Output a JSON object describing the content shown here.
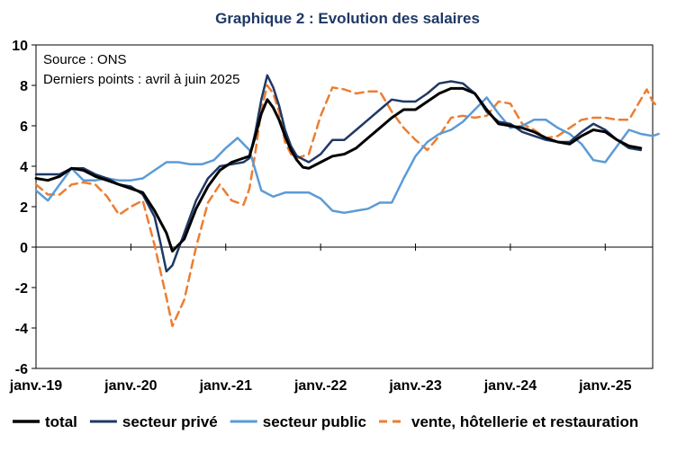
{
  "chart_data": {
    "type": "line",
    "title": "Graphique 2 : Evolution des salaires",
    "annotations": [
      "Source : ONS",
      "Derniers points : avril à juin 2025"
    ],
    "xlabel": "",
    "ylabel": "",
    "ylim": [
      -6,
      10
    ],
    "yticks": [
      -6,
      -4,
      -2,
      0,
      2,
      4,
      6,
      8,
      10
    ],
    "x_start": "2019-01",
    "x_end": "2025-06",
    "x_tick_labels": [
      "janv.-19",
      "janv.-20",
      "janv.-21",
      "janv.-22",
      "janv.-23",
      "janv.-24",
      "janv.-25"
    ],
    "grid": false,
    "legend_position": "bottom",
    "series": [
      {
        "name": "total",
        "color": "#000000",
        "style": "solid",
        "points": [
          [
            0,
            3.4
          ],
          [
            2,
            3.3
          ],
          [
            4,
            3.5
          ],
          [
            6,
            3.9
          ],
          [
            8,
            3.8
          ],
          [
            10,
            3.5
          ],
          [
            12,
            3.3
          ],
          [
            14,
            3.1
          ],
          [
            16,
            2.9
          ],
          [
            18,
            2.7
          ],
          [
            20,
            1.8
          ],
          [
            22,
            0.7
          ],
          [
            23,
            -0.2
          ],
          [
            25,
            0.4
          ],
          [
            27,
            1.9
          ],
          [
            29,
            3.0
          ],
          [
            31,
            3.8
          ],
          [
            33,
            4.2
          ],
          [
            35,
            4.4
          ],
          [
            36,
            4.5
          ],
          [
            37,
            5.5
          ],
          [
            38,
            6.6
          ],
          [
            39,
            7.3
          ],
          [
            40,
            6.9
          ],
          [
            41,
            6.3
          ],
          [
            42,
            5.5
          ],
          [
            43,
            4.8
          ],
          [
            44,
            4.3
          ],
          [
            45,
            3.95
          ],
          [
            46,
            3.9
          ],
          [
            48,
            4.2
          ],
          [
            50,
            4.5
          ],
          [
            52,
            4.6
          ],
          [
            54,
            4.9
          ],
          [
            56,
            5.4
          ],
          [
            58,
            5.9
          ],
          [
            60,
            6.4
          ],
          [
            62,
            6.8
          ],
          [
            64,
            6.8
          ],
          [
            66,
            7.2
          ],
          [
            68,
            7.6
          ],
          [
            70,
            7.85
          ],
          [
            72,
            7.85
          ],
          [
            74,
            7.6
          ],
          [
            76,
            6.8
          ],
          [
            78,
            6.1
          ],
          [
            80,
            6.0
          ],
          [
            82,
            5.9
          ],
          [
            84,
            5.7
          ],
          [
            86,
            5.4
          ],
          [
            88,
            5.2
          ],
          [
            90,
            5.1
          ],
          [
            92,
            5.5
          ],
          [
            94,
            5.8
          ],
          [
            96,
            5.7
          ],
          [
            98,
            5.3
          ],
          [
            100,
            5.0
          ],
          [
            102,
            4.9
          ]
        ]
      },
      {
        "name": "secteur privé",
        "color": "#1F3864",
        "style": "solid",
        "points": [
          [
            0,
            3.6
          ],
          [
            2,
            3.6
          ],
          [
            4,
            3.6
          ],
          [
            6,
            3.9
          ],
          [
            8,
            3.9
          ],
          [
            10,
            3.6
          ],
          [
            12,
            3.4
          ],
          [
            14,
            3.1
          ],
          [
            16,
            3.0
          ],
          [
            18,
            2.6
          ],
          [
            20,
            1.5
          ],
          [
            21,
            0.2
          ],
          [
            22,
            -1.2
          ],
          [
            23,
            -0.9
          ],
          [
            25,
            0.7
          ],
          [
            27,
            2.3
          ],
          [
            29,
            3.4
          ],
          [
            31,
            4.0
          ],
          [
            33,
            4.1
          ],
          [
            35,
            4.2
          ],
          [
            36,
            4.4
          ],
          [
            37,
            5.7
          ],
          [
            38,
            7.3
          ],
          [
            39,
            8.5
          ],
          [
            40,
            7.9
          ],
          [
            41,
            7.0
          ],
          [
            42,
            5.8
          ],
          [
            43,
            5.0
          ],
          [
            44,
            4.5
          ],
          [
            46,
            4.2
          ],
          [
            48,
            4.6
          ],
          [
            50,
            5.3
          ],
          [
            52,
            5.3
          ],
          [
            54,
            5.8
          ],
          [
            56,
            6.3
          ],
          [
            58,
            6.8
          ],
          [
            60,
            7.3
          ],
          [
            62,
            7.2
          ],
          [
            64,
            7.2
          ],
          [
            66,
            7.6
          ],
          [
            68,
            8.1
          ],
          [
            70,
            8.2
          ],
          [
            72,
            8.1
          ],
          [
            74,
            7.6
          ],
          [
            76,
            6.7
          ],
          [
            78,
            6.2
          ],
          [
            80,
            6.1
          ],
          [
            82,
            5.7
          ],
          [
            84,
            5.5
          ],
          [
            86,
            5.3
          ],
          [
            88,
            5.2
          ],
          [
            90,
            5.2
          ],
          [
            92,
            5.7
          ],
          [
            94,
            6.1
          ],
          [
            96,
            5.8
          ],
          [
            98,
            5.3
          ],
          [
            100,
            4.9
          ],
          [
            102,
            4.8
          ]
        ]
      },
      {
        "name": "secteur public",
        "color": "#5B9BD5",
        "style": "solid",
        "points": [
          [
            0,
            2.8
          ],
          [
            2,
            2.3
          ],
          [
            4,
            3.1
          ],
          [
            6,
            3.9
          ],
          [
            8,
            3.3
          ],
          [
            10,
            3.3
          ],
          [
            12,
            3.4
          ],
          [
            14,
            3.3
          ],
          [
            16,
            3.3
          ],
          [
            18,
            3.4
          ],
          [
            20,
            3.8
          ],
          [
            22,
            4.2
          ],
          [
            24,
            4.2
          ],
          [
            26,
            4.1
          ],
          [
            28,
            4.1
          ],
          [
            30,
            4.3
          ],
          [
            32,
            4.9
          ],
          [
            34,
            5.4
          ],
          [
            36,
            4.8
          ],
          [
            38,
            2.8
          ],
          [
            40,
            2.5
          ],
          [
            42,
            2.7
          ],
          [
            44,
            2.7
          ],
          [
            46,
            2.7
          ],
          [
            48,
            2.4
          ],
          [
            50,
            1.8
          ],
          [
            52,
            1.7
          ],
          [
            54,
            1.8
          ],
          [
            56,
            1.9
          ],
          [
            58,
            2.2
          ],
          [
            60,
            2.2
          ],
          [
            62,
            3.4
          ],
          [
            64,
            4.5
          ],
          [
            66,
            5.2
          ],
          [
            68,
            5.6
          ],
          [
            70,
            5.8
          ],
          [
            72,
            6.2
          ],
          [
            74,
            6.8
          ],
          [
            76,
            7.4
          ],
          [
            78,
            6.6
          ],
          [
            80,
            5.9
          ],
          [
            82,
            6.0
          ],
          [
            84,
            6.3
          ],
          [
            86,
            6.3
          ],
          [
            88,
            5.9
          ],
          [
            90,
            5.6
          ],
          [
            92,
            5.1
          ],
          [
            94,
            4.3
          ],
          [
            96,
            4.2
          ],
          [
            98,
            5.0
          ],
          [
            100,
            5.8
          ],
          [
            102,
            5.6
          ],
          [
            104,
            5.5
          ],
          [
            105,
            5.6
          ]
        ]
      },
      {
        "name": "vente, hôtellerie et restauration",
        "color": "#ED7D31",
        "style": "dashed",
        "points": [
          [
            0,
            3.1
          ],
          [
            2,
            2.6
          ],
          [
            4,
            2.6
          ],
          [
            6,
            3.1
          ],
          [
            8,
            3.2
          ],
          [
            10,
            3.1
          ],
          [
            12,
            2.5
          ],
          [
            14,
            1.6
          ],
          [
            16,
            2.0
          ],
          [
            18,
            2.3
          ],
          [
            20,
            0.1
          ],
          [
            22,
            -2.5
          ],
          [
            23,
            -3.9
          ],
          [
            25,
            -2.6
          ],
          [
            27,
            0.0
          ],
          [
            29,
            2.2
          ],
          [
            31,
            3.1
          ],
          [
            33,
            2.3
          ],
          [
            35,
            2.1
          ],
          [
            36,
            2.9
          ],
          [
            37,
            4.7
          ],
          [
            38,
            6.8
          ],
          [
            39,
            8.0
          ],
          [
            40,
            7.6
          ],
          [
            41,
            6.7
          ],
          [
            42,
            5.2
          ],
          [
            43,
            4.6
          ],
          [
            44,
            4.4
          ],
          [
            46,
            4.6
          ],
          [
            48,
            6.5
          ],
          [
            50,
            7.9
          ],
          [
            52,
            7.8
          ],
          [
            54,
            7.6
          ],
          [
            56,
            7.7
          ],
          [
            58,
            7.7
          ],
          [
            60,
            6.7
          ],
          [
            62,
            5.9
          ],
          [
            64,
            5.3
          ],
          [
            66,
            4.8
          ],
          [
            68,
            5.5
          ],
          [
            70,
            6.4
          ],
          [
            72,
            6.5
          ],
          [
            74,
            6.4
          ],
          [
            76,
            6.5
          ],
          [
            78,
            7.2
          ],
          [
            80,
            7.1
          ],
          [
            82,
            6.1
          ],
          [
            84,
            5.8
          ],
          [
            86,
            5.4
          ],
          [
            88,
            5.5
          ],
          [
            90,
            5.9
          ],
          [
            92,
            6.3
          ],
          [
            94,
            6.4
          ],
          [
            96,
            6.4
          ],
          [
            98,
            6.3
          ],
          [
            100,
            6.3
          ],
          [
            102,
            7.3
          ],
          [
            103,
            7.8
          ],
          [
            104,
            7.2
          ],
          [
            105,
            6.9
          ]
        ]
      }
    ]
  }
}
